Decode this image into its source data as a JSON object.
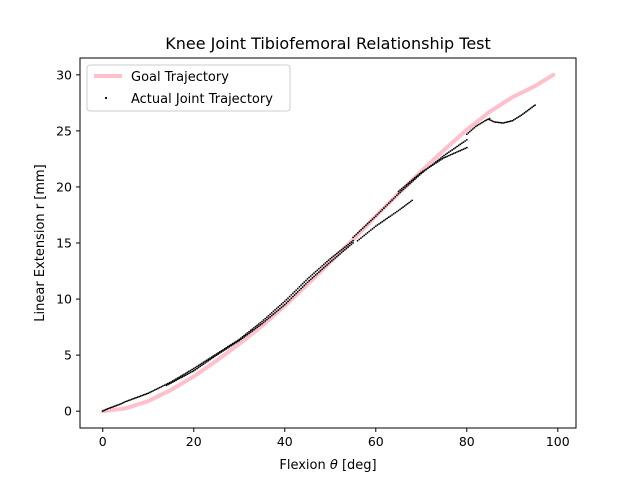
{
  "chart_data": {
    "type": "scatter",
    "title": "Knee Joint Tibiofemoral Relationship Test",
    "xlabel_text": "Flexion ",
    "xlabel_symbol": "θ",
    "xlabel_unit": " [deg]",
    "ylabel": "Linear Extension r [mm]",
    "xlim": [
      -5,
      104
    ],
    "ylim": [
      -1.5,
      31.5
    ],
    "xticks": [
      0,
      20,
      40,
      60,
      80,
      100
    ],
    "yticks": [
      0,
      5,
      10,
      15,
      20,
      25,
      30
    ],
    "grid": false,
    "legend_position": "upper-left",
    "series": [
      {
        "name": "Goal Trajectory",
        "kind": "line",
        "color": "#ffc0cb",
        "x": [
          0,
          5,
          10,
          15,
          20,
          25,
          30,
          35,
          40,
          45,
          50,
          55,
          60,
          65,
          70,
          75,
          80,
          85,
          90,
          95,
          99
        ],
        "y": [
          0,
          0.25,
          0.9,
          1.9,
          3.1,
          4.5,
          6.0,
          7.6,
          9.4,
          11.3,
          13.3,
          15.3,
          17.4,
          19.4,
          21.4,
          23.3,
          25.1,
          26.7,
          28.0,
          29.0,
          30.0
        ]
      },
      {
        "name": "Actual Joint Trajectory",
        "kind": "scatter",
        "color": "#000000",
        "segments": [
          {
            "x": [
              0,
              1,
              2,
              3,
              4,
              5,
              6,
              7,
              8,
              9,
              10
            ],
            "y": [
              0,
              0.2,
              0.35,
              0.5,
              0.65,
              0.85,
              1.0,
              1.15,
              1.3,
              1.45,
              1.6
            ]
          },
          {
            "x": [
              10,
              15,
              20,
              25,
              30,
              35,
              40,
              45,
              50,
              55
            ],
            "y": [
              1.6,
              2.6,
              3.8,
              5.1,
              6.4,
              8.0,
              9.8,
              11.8,
              13.6,
              15.2
            ]
          },
          {
            "x": [
              14,
              20,
              25,
              30,
              35,
              40,
              45,
              50,
              55
            ],
            "y": [
              2.3,
              3.6,
              5.0,
              6.3,
              7.8,
              9.5,
              11.5,
              13.3,
              15.0
            ]
          },
          {
            "x": [
              55,
              60,
              65,
              70,
              75,
              80
            ],
            "y": [
              15.5,
              17.4,
              19.4,
              21.2,
              22.8,
              24.2
            ]
          },
          {
            "x": [
              56,
              60,
              65,
              68
            ],
            "y": [
              15.2,
              16.5,
              17.9,
              18.8
            ]
          },
          {
            "x": [
              65,
              70,
              75,
              80
            ],
            "y": [
              19.6,
              21.3,
              22.6,
              23.5
            ]
          },
          {
            "x": [
              80,
              82,
              84,
              85
            ],
            "y": [
              24.7,
              25.4,
              25.9,
              26.1
            ]
          },
          {
            "x": [
              85,
              86,
              88,
              90,
              92,
              94,
              95
            ],
            "y": [
              26.0,
              25.8,
              25.7,
              25.9,
              26.4,
              27.0,
              27.3
            ]
          }
        ]
      }
    ]
  }
}
